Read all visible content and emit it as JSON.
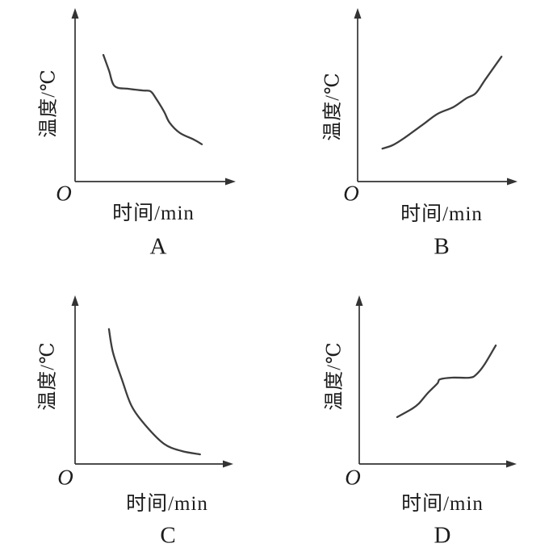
{
  "colors": {
    "ink": "#333333",
    "curve": "#3d3d3d",
    "background": "#ffffff"
  },
  "chart_data": [
    {
      "id": "A",
      "type": "line",
      "option_label": "A",
      "xlabel": "时间/min",
      "ylabel": "温度/℃",
      "origin_label": "O",
      "axis_ticks": "none",
      "x_range": [
        0,
        1
      ],
      "y_range": [
        0,
        1
      ],
      "description": "Temperature falls steeply, holds a flat plateau mid-way, then falls again and levels off low",
      "points": [
        [
          0.176,
          0.73
        ],
        [
          0.211,
          0.64
        ],
        [
          0.246,
          0.55
        ],
        [
          0.33,
          0.535
        ],
        [
          0.42,
          0.525
        ],
        [
          0.47,
          0.52
        ],
        [
          0.503,
          0.48
        ],
        [
          0.553,
          0.405
        ],
        [
          0.588,
          0.34
        ],
        [
          0.653,
          0.28
        ],
        [
          0.739,
          0.242
        ],
        [
          0.789,
          0.215
        ]
      ]
    },
    {
      "id": "B",
      "type": "line",
      "option_label": "B",
      "xlabel": "时间/min",
      "ylabel": "温度/℃",
      "origin_label": "O",
      "axis_ticks": "none",
      "x_range": [
        0,
        1
      ],
      "y_range": [
        0,
        1
      ],
      "description": "Temperature rises continuously from low start with gentle S-shaped inflections, steepest at the end",
      "points": [
        [
          0.155,
          0.19
        ],
        [
          0.22,
          0.21
        ],
        [
          0.29,
          0.25
        ],
        [
          0.41,
          0.33
        ],
        [
          0.5,
          0.39
        ],
        [
          0.6,
          0.43
        ],
        [
          0.68,
          0.48
        ],
        [
          0.74,
          0.51
        ],
        [
          0.8,
          0.59
        ],
        [
          0.9,
          0.72
        ]
      ]
    },
    {
      "id": "C",
      "type": "line",
      "option_label": "C",
      "xlabel": "时间/min",
      "ylabel": "温度/℃",
      "origin_label": "O",
      "axis_ticks": "none",
      "x_range": [
        0,
        1
      ],
      "y_range": [
        0,
        1
      ],
      "description": "Temperature decays steeply from a high start and levels off near the bottom (exponential-like cooling)",
      "points": [
        [
          0.214,
          0.8
        ],
        [
          0.24,
          0.66
        ],
        [
          0.3,
          0.49
        ],
        [
          0.357,
          0.344
        ],
        [
          0.444,
          0.23
        ],
        [
          0.561,
          0.12
        ],
        [
          0.673,
          0.077
        ],
        [
          0.79,
          0.057
        ]
      ]
    },
    {
      "id": "D",
      "type": "line",
      "option_label": "D",
      "xlabel": "时间/min",
      "ylabel": "温度/℃",
      "origin_label": "O",
      "axis_ticks": "none",
      "x_range": [
        0,
        1
      ],
      "y_range": [
        0,
        1
      ],
      "description": "Temperature rises, holds a flat plateau mid-way, then rises steeply again",
      "points": [
        [
          0.241,
          0.278
        ],
        [
          0.34,
          0.33
        ],
        [
          0.379,
          0.359
        ],
        [
          0.436,
          0.421
        ],
        [
          0.497,
          0.478
        ],
        [
          0.513,
          0.502
        ],
        [
          0.59,
          0.512
        ],
        [
          0.703,
          0.512
        ],
        [
          0.744,
          0.531
        ],
        [
          0.795,
          0.589
        ],
        [
          0.867,
          0.703
        ]
      ]
    }
  ]
}
